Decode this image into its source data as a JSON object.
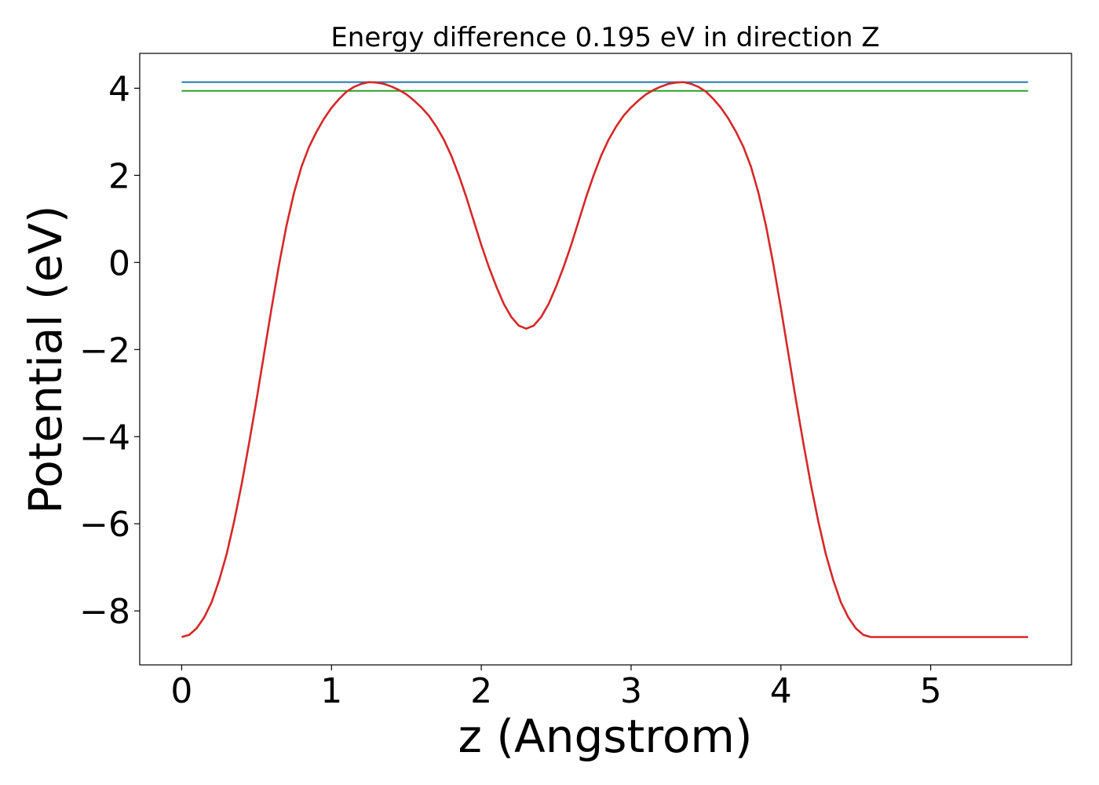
{
  "chart_data": {
    "type": "line",
    "title": "Energy difference 0.195 eV in direction Z",
    "xlabel": "z (Angstrom)",
    "ylabel": "Potential (eV)",
    "xlim": [
      -0.28,
      5.94
    ],
    "ylim": [
      -9.24,
      4.8
    ],
    "xticks": [
      0,
      1,
      2,
      3,
      4,
      5
    ],
    "yticks": [
      4,
      2,
      0,
      -2,
      -4,
      -6,
      -8
    ],
    "xtick_labels": [
      "0",
      "1",
      "2",
      "3",
      "4",
      "5"
    ],
    "ytick_labels": [
      "4",
      "2",
      "0",
      "−2",
      "−4",
      "−6",
      "−8"
    ],
    "grid": false,
    "series": [
      {
        "color": "#1f77b4",
        "x": [
          0,
          5.65
        ],
        "y": [
          4.14,
          4.14
        ]
      },
      {
        "color": "#2ca02c",
        "x": [
          0,
          5.65
        ],
        "y": [
          3.94,
          3.94
        ]
      },
      {
        "color": "#d62728",
        "x": [
          0,
          0.05,
          0.1,
          0.15,
          0.2,
          0.25,
          0.3,
          0.35,
          0.4,
          0.45,
          0.5,
          0.55,
          0.6,
          0.65,
          0.7,
          0.75,
          0.8,
          0.85,
          0.9,
          0.95,
          1.0,
          1.05,
          1.1,
          1.15,
          1.2,
          1.25,
          1.3,
          1.35,
          1.4,
          1.45,
          1.5,
          1.55,
          1.6,
          1.65,
          1.7,
          1.75,
          1.8,
          1.85,
          1.9,
          1.95,
          2.0,
          2.05,
          2.1,
          2.15,
          2.2,
          2.25,
          2.3,
          2.35,
          2.4,
          2.45,
          2.5,
          2.55,
          2.6,
          2.65,
          2.7,
          2.75,
          2.8,
          2.85,
          2.9,
          2.95,
          3.0,
          3.05,
          3.1,
          3.15,
          3.2,
          3.25,
          3.3,
          3.35,
          3.4,
          3.45,
          3.5,
          3.55,
          3.6,
          3.65,
          3.7,
          3.75,
          3.8,
          3.85,
          3.9,
          3.95,
          4.0,
          4.05,
          4.1,
          4.15,
          4.2,
          4.25,
          4.3,
          4.35,
          4.4,
          4.45,
          4.5,
          4.55,
          4.6,
          4.65,
          4.7,
          4.75,
          4.8,
          4.85,
          4.9,
          4.95,
          5.0,
          5.05,
          5.1,
          5.15,
          5.2,
          5.25,
          5.3,
          5.35,
          5.4,
          5.45,
          5.5,
          5.55,
          5.6,
          5.65
        ],
        "y": [
          -8.6,
          -8.55,
          -8.4,
          -8.15,
          -7.8,
          -7.3,
          -6.7,
          -5.95,
          -5.1,
          -4.15,
          -3.15,
          -2.1,
          -1.05,
          -0.05,
          0.85,
          1.6,
          2.2,
          2.65,
          3.0,
          3.3,
          3.55,
          3.75,
          3.92,
          4.03,
          4.1,
          4.14,
          4.13,
          4.1,
          4.04,
          3.96,
          3.86,
          3.72,
          3.56,
          3.37,
          3.12,
          2.82,
          2.45,
          2.0,
          1.5,
          0.95,
          0.4,
          -0.1,
          -0.55,
          -0.95,
          -1.25,
          -1.45,
          -1.52,
          -1.45,
          -1.25,
          -0.95,
          -0.55,
          -0.1,
          0.4,
          0.95,
          1.5,
          2.0,
          2.45,
          2.82,
          3.12,
          3.37,
          3.56,
          3.72,
          3.86,
          3.96,
          4.04,
          4.1,
          4.13,
          4.14,
          4.1,
          4.03,
          3.92,
          3.75,
          3.55,
          3.3,
          3.0,
          2.65,
          2.2,
          1.6,
          0.85,
          -0.05,
          -1.05,
          -2.1,
          -3.15,
          -4.15,
          -5.1,
          -5.95,
          -6.7,
          -7.3,
          -7.8,
          -8.15,
          -8.4,
          -8.55,
          -8.6,
          -8.6,
          -8.6,
          -8.6,
          -8.6,
          -8.6,
          -8.6,
          -8.6,
          -8.6,
          -8.6,
          -8.6,
          -8.6,
          -8.6,
          -8.6,
          -8.6,
          -8.6,
          -8.6,
          -8.6,
          -8.6,
          -8.6,
          -8.6,
          -8.6
        ]
      }
    ]
  }
}
